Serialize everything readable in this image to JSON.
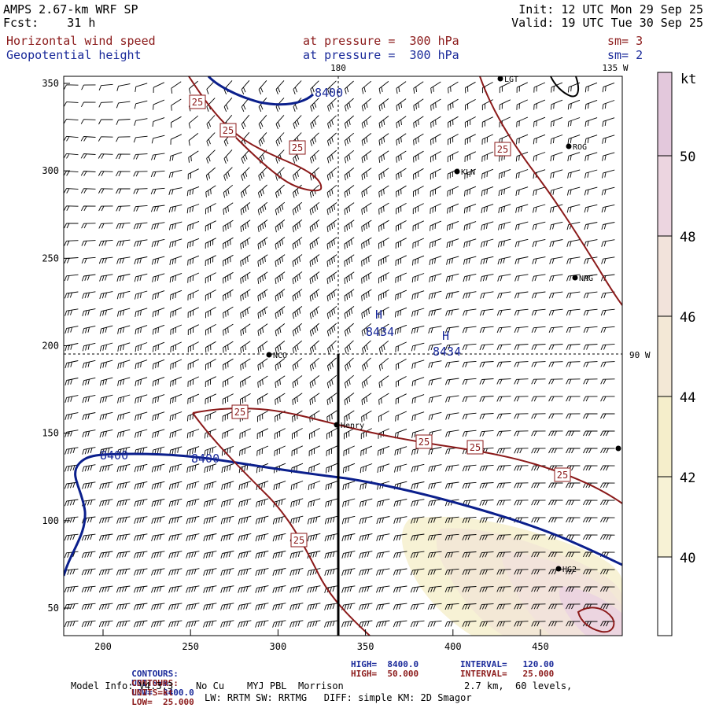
{
  "header": {
    "model_line": "AMPS 2.67-km WRF SP",
    "fcst_line": "Fcst:    31 h",
    "init_line": "Init: 12 UTC Mon 29 Sep 25",
    "valid_line": "Valid: 19 UTC Tue 30 Sep 25",
    "field1_name": "Horizontal wind speed",
    "field1_level": "at pressure =  300 hPa",
    "field1_sm": "sm= 3",
    "field2_name": "Geopotential height",
    "field2_level": "at pressure =  300 hPa",
    "field2_sm": "sm= 2"
  },
  "colors": {
    "height_contour": "#0b1f8c",
    "speed_contour": "#8b1a1a",
    "barb": "#000000",
    "fill_40_42": "#f7f2d5",
    "fill_42_44": "#f5eecb",
    "fill_44_46": "#f3e8d6",
    "fill_46_48": "#f2e3db",
    "fill_48_50": "#ecd5e0",
    "fill_50_plus": "#e3c8dc"
  },
  "axes": {
    "x_ticks": [
      "200",
      "250",
      "300",
      "350",
      "400",
      "450"
    ],
    "y_ticks": [
      "50",
      "100",
      "150",
      "200",
      "250",
      "300",
      "350"
    ],
    "lon_labels": [
      "180",
      "135 W",
      "90 W"
    ]
  },
  "colorbar": {
    "unit": "kt",
    "labels": [
      "40",
      "42",
      "44",
      "46",
      "48",
      "50"
    ]
  },
  "contour_labels": {
    "height": [
      "8400",
      "8400",
      "8400"
    ],
    "speed": [
      "25",
      "25",
      "25",
      "25",
      "25",
      "25",
      "25",
      "25",
      "25"
    ]
  },
  "highs": [
    {
      "symbol": "H",
      "value": "8434"
    },
    {
      "symbol": "H",
      "value": "8434"
    }
  ],
  "stations": [
    "LGT",
    "ROG",
    "KLN",
    "NRG",
    "NCO",
    "Henry",
    "HG2"
  ],
  "footer": {
    "c1_label": "CONTOURS:",
    "c1_units": "UNITS=m",
    "c1_low": "LOW=  8400.0",
    "c1_high": "HIGH=  8400.0",
    "c1_interval": "INTERVAL=   120.00",
    "c2_label": "CONTOURS:",
    "c2_units": "UNITS=kt",
    "c2_low": "LOW=  25.000",
    "c2_high": "HIGH=  50.000",
    "c2_interval": "INTERVAL=   25.000",
    "model_info": "Model Info: V4.3.3    No Cu    MYJ PBL  Morrison",
    "grid_info": "2.7 km,  60 levels,",
    "physics_info": "LW: RRTM SW: RRTMG   DIFF: simple KM: 2D Smagor"
  }
}
